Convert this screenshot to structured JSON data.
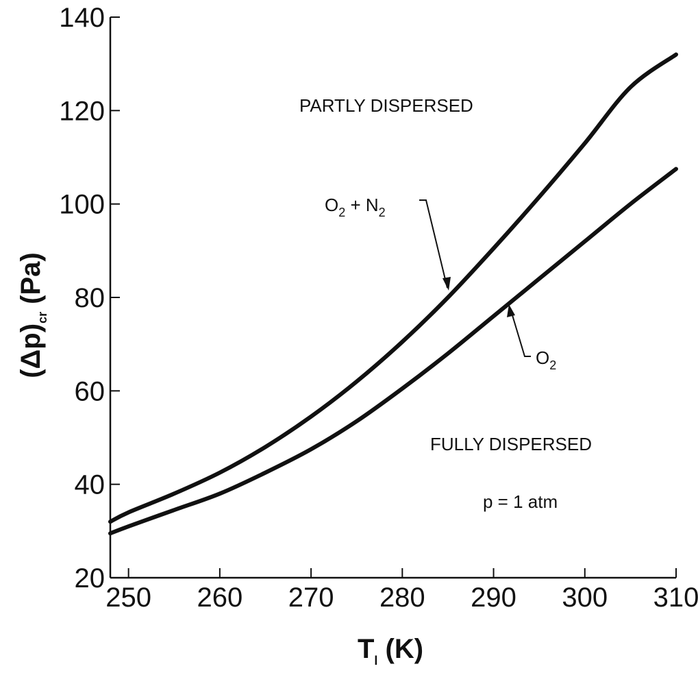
{
  "chart_data": {
    "type": "line",
    "title": "",
    "xlabel": {
      "main": "T",
      "subscript": "l",
      "unit": "(K)"
    },
    "ylabel": {
      "prefix": "(Δp)",
      "subscript": "cr",
      "unit": "(Pa)"
    },
    "xlim": [
      248,
      310
    ],
    "ylim": [
      20,
      140
    ],
    "xticks": [
      "250",
      "260",
      "270",
      "280",
      "290",
      "300",
      "310"
    ],
    "yticks": [
      "20",
      "40",
      "60",
      "80",
      "100",
      "120",
      "140"
    ],
    "grid": false,
    "series": [
      {
        "name": "O2 + N2",
        "label": {
          "a": "O",
          "a_sub": "2",
          "mid": " + N",
          "b_sub": "2"
        },
        "x": [
          248,
          250,
          255,
          260,
          265,
          270,
          275,
          280,
          285,
          290,
          295,
          300,
          305,
          310
        ],
        "y": [
          32,
          34,
          38,
          42.5,
          48,
          54.5,
          62,
          70.5,
          80,
          90.5,
          101.5,
          113,
          125,
          132
        ]
      },
      {
        "name": "O2",
        "label": {
          "a": "O",
          "a_sub": "2"
        },
        "x": [
          248,
          250,
          255,
          260,
          265,
          270,
          275,
          280,
          285,
          290,
          295,
          300,
          305,
          310
        ],
        "y": [
          29.5,
          31,
          34.5,
          38,
          42.5,
          47.5,
          53.5,
          60.5,
          68,
          76,
          84,
          92,
          100,
          107.5
        ]
      }
    ],
    "annotations": {
      "partly": "PARTLY DISPERSED",
      "fully": "FULLY DISPERSED",
      "pressure": "p  = 1 atm"
    }
  }
}
